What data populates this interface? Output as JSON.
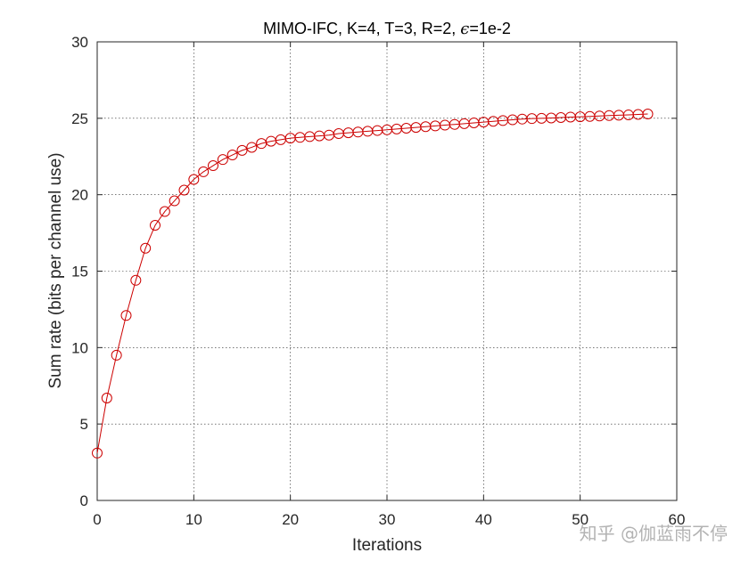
{
  "chart_data": {
    "type": "line",
    "title_prefix": "MIMO-IFC, K=4, T=3, R=2, ",
    "title_symbol": "ϵ",
    "title_suffix": "=1e-2",
    "xlabel": "Iterations",
    "ylabel": "Sum rate (bits per channel use)",
    "xlim": [
      0,
      60
    ],
    "ylim": [
      0,
      30
    ],
    "xticks": [
      "0",
      "10",
      "20",
      "30",
      "40",
      "50",
      "60"
    ],
    "yticks": [
      "0",
      "5",
      "10",
      "15",
      "20",
      "25",
      "30"
    ],
    "grid": true,
    "marker": "circle",
    "series_color": "#cc0000",
    "series": [
      {
        "x": [
          0,
          1,
          2,
          3,
          4,
          5,
          6,
          7,
          8,
          9,
          10,
          11,
          12,
          13,
          14,
          15,
          16,
          17,
          18,
          19,
          20,
          21,
          22,
          23,
          24,
          25,
          26,
          27,
          28,
          29,
          30,
          31,
          32,
          33,
          34,
          35,
          36,
          37,
          38,
          39,
          40,
          41,
          42,
          43,
          44,
          45,
          46,
          47,
          48,
          49,
          50,
          51,
          52,
          53,
          54,
          55,
          56,
          57
        ],
        "values": [
          3.1,
          6.7,
          9.5,
          12.1,
          14.4,
          16.5,
          18.0,
          18.9,
          19.6,
          20.3,
          21.0,
          21.5,
          21.9,
          22.3,
          22.6,
          22.9,
          23.1,
          23.35,
          23.5,
          23.6,
          23.7,
          23.75,
          23.8,
          23.85,
          23.9,
          24.0,
          24.05,
          24.1,
          24.15,
          24.2,
          24.25,
          24.3,
          24.35,
          24.4,
          24.45,
          24.5,
          24.55,
          24.6,
          24.65,
          24.7,
          24.75,
          24.8,
          24.85,
          24.9,
          24.95,
          24.98,
          25.0,
          25.02,
          25.05,
          25.08,
          25.1,
          25.12,
          25.15,
          25.18,
          25.2,
          25.22,
          25.25,
          25.28
        ]
      }
    ]
  },
  "watermark": "知乎 @伽蓝雨不停"
}
